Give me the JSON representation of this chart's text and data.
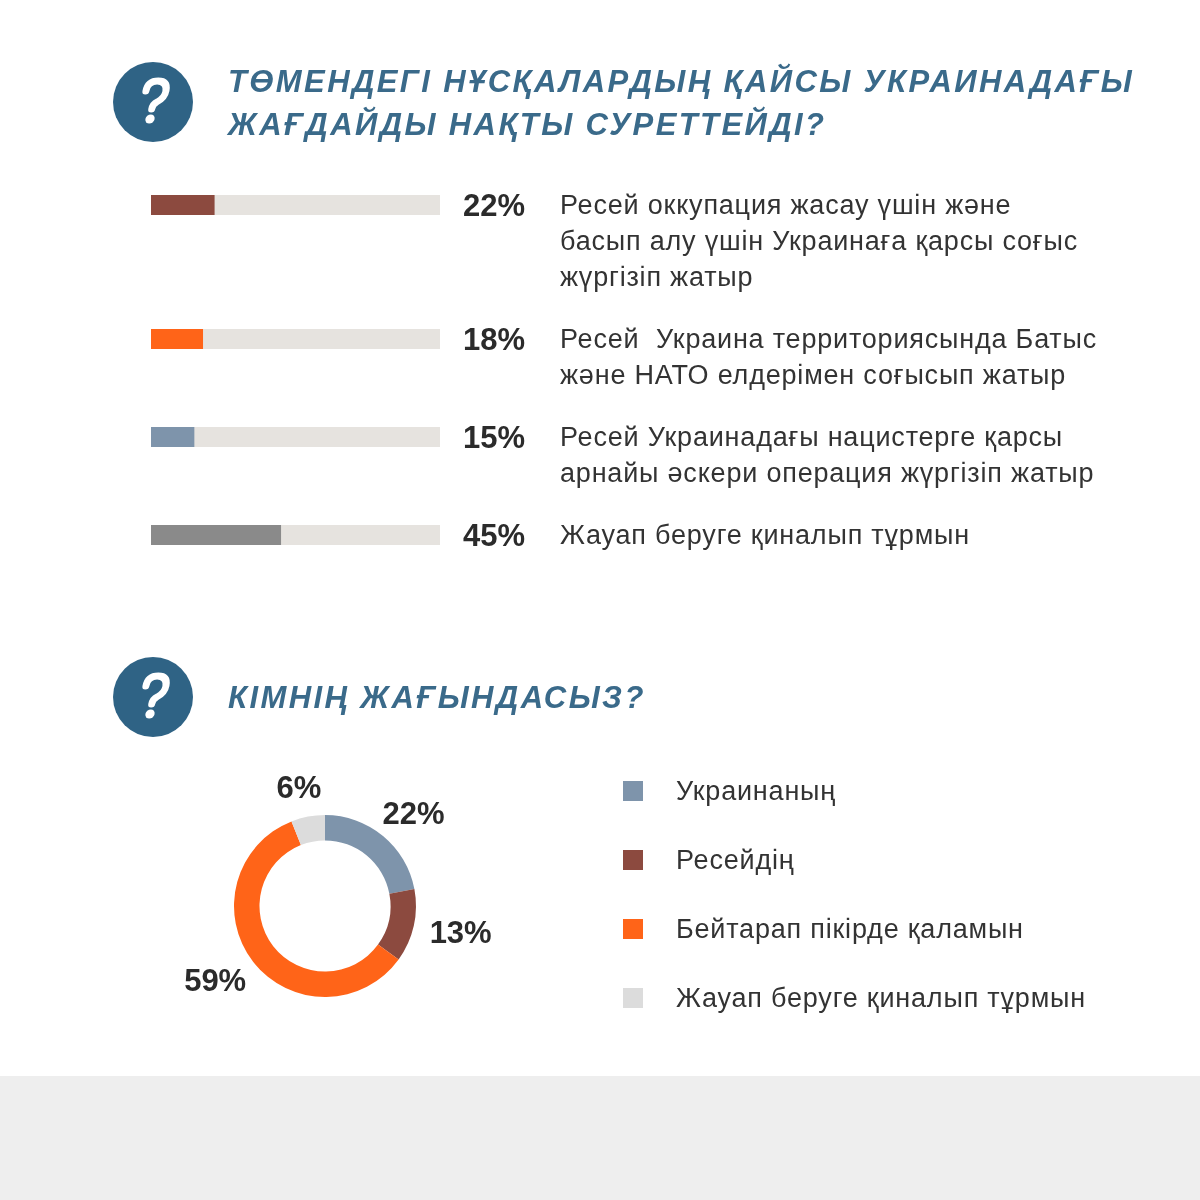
{
  "chart_data": [
    {
      "type": "bar",
      "orientation": "horizontal",
      "title": "ТӨМЕНДЕГІ НҰСҚАЛАРДЫҢ ҚАЙСЫ УКРАИНАДАҒЫ\nЖАҒДАЙДЫ НАҚТЫ СУРЕТТЕЙДІ?",
      "categories": [
        "Ресей оккупация жасау үшін және\nбасып алу үшін Украинаға қарсы соғыс\nжүргізіп жатыр",
        "Ресей  Украина территориясында Батыс\nжәне НАТО елдерімен соғысып жатыр",
        "Ресей Украинадағы нацистерге қарсы\nарнайы әскери операция жүргізіп жатыр",
        "Жауап беруге қиналып тұрмын"
      ],
      "values": [
        22,
        18,
        15,
        45
      ],
      "colors": [
        "#8c4a3f",
        "#ff6418",
        "#7e94ab",
        "#8a8a8a"
      ],
      "value_labels": [
        "22%",
        "18%",
        "15%",
        "45%"
      ],
      "xlim": [
        0,
        100
      ],
      "tick_labels": "y"
    },
    {
      "type": "donut",
      "title": "КІМНІҢ ЖАҒЫНДАСЫЗ?",
      "categories": [
        "Украинаның",
        "Ресейдің",
        "Бейтарап пікірде қаламын",
        "Жауап беруге қиналып тұрмын"
      ],
      "values": [
        22,
        13,
        59,
        6
      ],
      "colors": [
        "#7e94ab",
        "#8c4a3f",
        "#ff6418",
        "#dcdcdc"
      ],
      "value_labels": [
        "22%",
        "13%",
        "59%",
        "6%"
      ],
      "legend": "right"
    }
  ]
}
